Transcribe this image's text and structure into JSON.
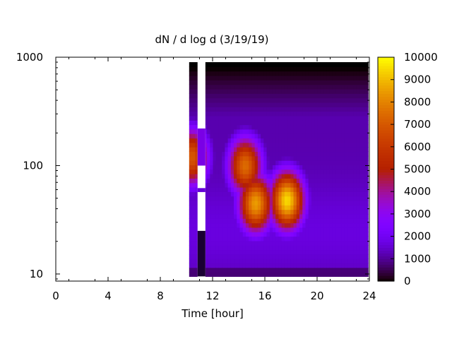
{
  "chart_data": {
    "type": "heatmap",
    "title": "dN / d log d (3/19/19)",
    "xlabel": "Time [hour]",
    "ylabel": "",
    "xlim": [
      0,
      24
    ],
    "ylim": [
      8.6,
      1000
    ],
    "y_scale": "log",
    "x_ticks": [
      "0",
      "4",
      "8",
      "12",
      "16",
      "20",
      "24"
    ],
    "y_ticks": [
      "10",
      "100",
      "1000"
    ],
    "colorbar": {
      "range": [
        0,
        10000
      ],
      "ticks": [
        "0",
        "1000",
        "2000",
        "3000",
        "4000",
        "5000",
        "6000",
        "7000",
        "8000",
        "9000",
        "10000"
      ],
      "palette": "black-purple-red-yellow"
    },
    "data_coverage": {
      "start_hour": 10.2,
      "end_hour": 23.9,
      "min_diameter": 9.5
    },
    "peaks": [
      {
        "time_hour": 14.5,
        "diameter": 100,
        "value": 7500
      },
      {
        "time_hour": 15.3,
        "diameter": 45,
        "value": 8500
      },
      {
        "time_hour": 17.7,
        "diameter": 48,
        "value": 9500
      },
      {
        "time_hour": 10.4,
        "diameter": 120,
        "value": 7000
      }
    ]
  }
}
